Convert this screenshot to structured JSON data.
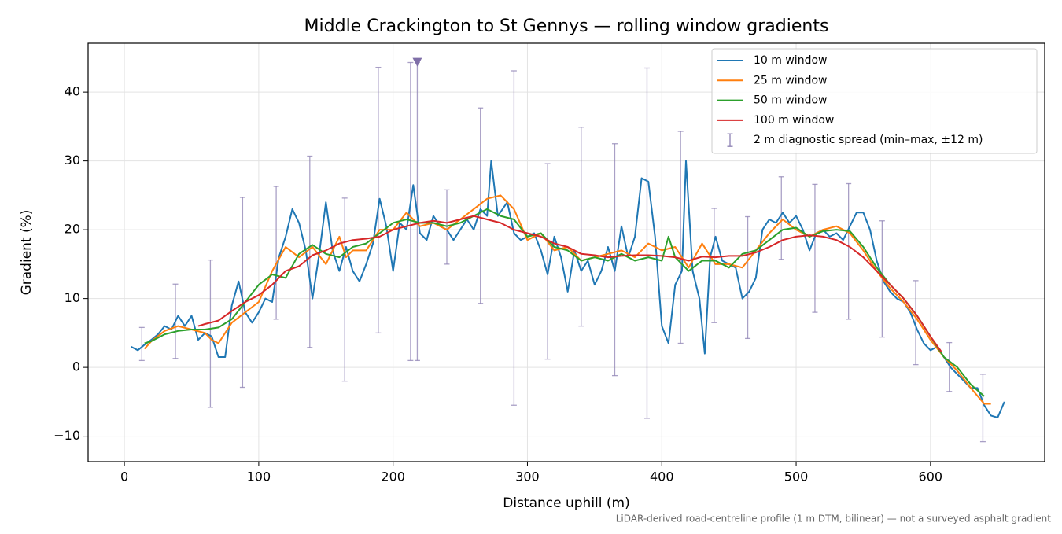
{
  "chart_data": {
    "type": "line",
    "title": "Middle Crackington to St Gennys — rolling window gradients",
    "xlabel": "Distance uphill (m)",
    "ylabel": "Gradient (%)",
    "footnote": "LiDAR-derived road-centreline profile (1 m DTM, bilinear) — not a surveyed asphalt gradient",
    "xlim": [
      -27,
      685
    ],
    "ylim": [
      -13.7,
      47.1
    ],
    "xticks": [
      0,
      100,
      200,
      300,
      400,
      500,
      600
    ],
    "yticks": [
      {
        "value": -10,
        "label": "−10"
      },
      0,
      10,
      20,
      30,
      40
    ],
    "grid": true,
    "legend": "upper right",
    "series": [
      {
        "name": "10 m window",
        "color": "#1f77b4",
        "x": [
          5,
          10,
          15,
          20,
          25,
          30,
          35,
          40,
          45,
          50,
          55,
          60,
          65,
          70,
          75,
          80,
          85,
          90,
          95,
          100,
          105,
          110,
          115,
          120,
          125,
          130,
          135,
          140,
          145,
          150,
          155,
          160,
          165,
          170,
          175,
          180,
          185,
          190,
          195,
          200,
          205,
          210,
          215,
          220,
          225,
          230,
          235,
          240,
          245,
          250,
          255,
          260,
          265,
          270,
          273,
          278,
          285,
          290,
          295,
          300,
          305,
          310,
          315,
          320,
          325,
          330,
          335,
          340,
          345,
          350,
          355,
          360,
          365,
          370,
          375,
          380,
          385,
          390,
          395,
          400,
          405,
          410,
          415,
          418,
          423,
          428,
          432,
          436,
          440,
          445,
          450,
          455,
          460,
          465,
          470,
          475,
          480,
          485,
          490,
          495,
          500,
          505,
          510,
          515,
          520,
          525,
          530,
          535,
          540,
          545,
          550,
          555,
          560,
          565,
          570,
          575,
          580,
          585,
          590,
          595,
          600,
          605,
          610,
          615,
          620,
          625,
          630,
          635,
          640,
          645,
          650,
          655
        ],
        "values": [
          3,
          2.5,
          3.3,
          4,
          4.8,
          6,
          5.5,
          7.5,
          6,
          7.5,
          4,
          5,
          4.5,
          1.5,
          1.5,
          9,
          12.5,
          8,
          6.5,
          8,
          10,
          9.5,
          16,
          19,
          23,
          21,
          17,
          10,
          16.5,
          24,
          17,
          14,
          17.5,
          14,
          12.5,
          15,
          18,
          24.5,
          20.5,
          14,
          21,
          20,
          26.5,
          19.5,
          18.5,
          22,
          20.5,
          20,
          18.5,
          20,
          21.5,
          20,
          23,
          22,
          30,
          22,
          24,
          19.5,
          18.5,
          19,
          19.5,
          17,
          13.5,
          19,
          16,
          11,
          17,
          14,
          15.5,
          12,
          14,
          17.5,
          14,
          20.5,
          16,
          19,
          27.5,
          27,
          19,
          6,
          3.5,
          12,
          14,
          30,
          14,
          10,
          2,
          16,
          19,
          15.5,
          15,
          14.5,
          10,
          11,
          13,
          20,
          21.5,
          21,
          22.5,
          21,
          22,
          20,
          17,
          19.5,
          20,
          19,
          19.5,
          18.5,
          20.5,
          22.5,
          22.5,
          20,
          15.5,
          12.5,
          11,
          10,
          9.5,
          8,
          5.5,
          3.5,
          2.5,
          3,
          1.5,
          0,
          -1,
          -2,
          -3,
          -3,
          -5.5,
          -7,
          -7.3,
          -5
        ]
      },
      {
        "name": "25 m window",
        "color": "#ff7f0e",
        "x": [
          15,
          20,
          30,
          40,
          50,
          60,
          65,
          70,
          80,
          90,
          100,
          110,
          120,
          130,
          140,
          150,
          160,
          165,
          170,
          180,
          190,
          200,
          210,
          220,
          230,
          240,
          250,
          260,
          270,
          280,
          290,
          300,
          310,
          320,
          330,
          340,
          350,
          360,
          370,
          380,
          390,
          400,
          410,
          420,
          430,
          440,
          450,
          460,
          470,
          480,
          490,
          500,
          510,
          520,
          530,
          540,
          550,
          560,
          570,
          580,
          590,
          600,
          610,
          620,
          630,
          640,
          645
        ],
        "values": [
          2.7,
          3.8,
          5.3,
          6,
          5.5,
          5,
          4,
          3.5,
          6.5,
          8,
          9.5,
          14,
          17.5,
          16,
          17.5,
          15,
          19,
          16,
          17,
          17,
          20,
          20,
          22.5,
          20.5,
          21,
          20,
          21.5,
          23,
          24.5,
          25,
          23,
          18.5,
          19.5,
          17,
          17.5,
          15.5,
          16,
          16.5,
          17,
          16,
          18,
          17,
          17.5,
          14.5,
          18,
          15,
          15,
          14.5,
          17,
          19.5,
          21.5,
          20,
          19,
          20,
          20.5,
          19.5,
          17,
          14,
          11.5,
          9.5,
          7,
          4,
          1.5,
          -0.5,
          -3,
          -5.3,
          -5.3
        ]
      },
      {
        "name": "50 m window",
        "color": "#2ca02c",
        "x": [
          15,
          20,
          30,
          40,
          50,
          60,
          70,
          80,
          90,
          100,
          110,
          120,
          130,
          140,
          150,
          160,
          170,
          180,
          190,
          200,
          210,
          220,
          230,
          240,
          250,
          260,
          270,
          280,
          290,
          300,
          310,
          320,
          330,
          340,
          350,
          360,
          370,
          380,
          390,
          400,
          405,
          410,
          420,
          430,
          440,
          450,
          460,
          470,
          480,
          490,
          500,
          510,
          520,
          530,
          540,
          550,
          560,
          570,
          580,
          590,
          600,
          610,
          620,
          630,
          640
        ],
        "values": [
          3.5,
          3.8,
          4.8,
          5.3,
          5.5,
          5.5,
          5.8,
          7,
          9.5,
          12,
          13.5,
          13,
          16.5,
          17.8,
          16.5,
          16,
          17.5,
          18,
          19.5,
          21,
          21.5,
          21,
          21,
          20.5,
          21,
          22,
          23,
          22,
          21.5,
          19,
          19.5,
          17.5,
          17,
          15.5,
          16,
          15.5,
          16.5,
          15.5,
          16,
          15.5,
          19,
          16,
          14,
          15.5,
          15.5,
          14.5,
          16.5,
          17,
          18.5,
          20,
          20.3,
          19,
          19.8,
          20,
          19.8,
          17.5,
          14.5,
          12,
          10,
          7.5,
          4.5,
          1.5,
          0,
          -2.5,
          -4.2
        ]
      },
      {
        "name": "100 m window",
        "color": "#d62728",
        "x": [
          55,
          60,
          70,
          80,
          90,
          100,
          110,
          120,
          130,
          140,
          150,
          160,
          170,
          180,
          190,
          200,
          210,
          220,
          230,
          240,
          250,
          260,
          270,
          280,
          290,
          300,
          310,
          320,
          330,
          340,
          350,
          360,
          370,
          380,
          390,
          400,
          410,
          420,
          430,
          440,
          450,
          460,
          470,
          480,
          490,
          500,
          510,
          520,
          530,
          540,
          550,
          560,
          570,
          580,
          590,
          600,
          608
        ],
        "values": [
          6,
          6.3,
          6.8,
          8.2,
          9.5,
          10.5,
          12,
          14,
          14.7,
          16.3,
          17,
          18,
          18.5,
          18.7,
          19,
          20,
          20.5,
          21,
          21.3,
          21,
          21.5,
          22,
          21.5,
          21,
          20,
          19.5,
          19,
          18,
          17.5,
          16.5,
          16.3,
          16,
          16.2,
          16.3,
          16.3,
          16.2,
          16,
          15.5,
          16.1,
          16,
          16.2,
          16.2,
          16.7,
          17.5,
          18.5,
          19,
          19.2,
          19,
          18.5,
          17.5,
          16,
          14,
          12,
          10,
          7.5,
          4.5,
          2.3
        ]
      }
    ],
    "errorbars": {
      "name": "2 m diagnostic spread (min–max, ±12 m)",
      "color": "#8c80b3",
      "x": [
        13,
        38,
        64,
        88,
        113,
        138,
        164,
        189,
        213,
        218,
        240,
        265,
        290,
        315,
        340,
        365,
        389,
        414,
        439,
        464,
        489,
        514,
        539,
        564,
        589,
        614,
        639
      ],
      "lows": [
        1.0,
        1.3,
        -5.8,
        -2.9,
        7.0,
        2.9,
        -2.0,
        5.0,
        1.0,
        1.0,
        15.0,
        9.3,
        -5.5,
        1.2,
        6.0,
        -1.2,
        -7.4,
        3.5,
        6.5,
        4.2,
        15.7,
        8.0,
        7.0,
        4.4,
        0.4,
        -3.5,
        -10.8
      ],
      "highs": [
        5.8,
        12.1,
        15.6,
        24.7,
        26.3,
        30.7,
        24.6,
        43.6,
        44.3,
        44.3,
        25.8,
        37.7,
        43.1,
        29.6,
        34.9,
        32.5,
        43.5,
        34.3,
        23.1,
        21.9,
        27.7,
        26.6,
        26.7,
        21.3,
        12.6,
        3.6,
        -1.0
      ]
    },
    "peak_marker": {
      "x": 218,
      "y": 44.4,
      "color": "#7f6fa8"
    }
  }
}
